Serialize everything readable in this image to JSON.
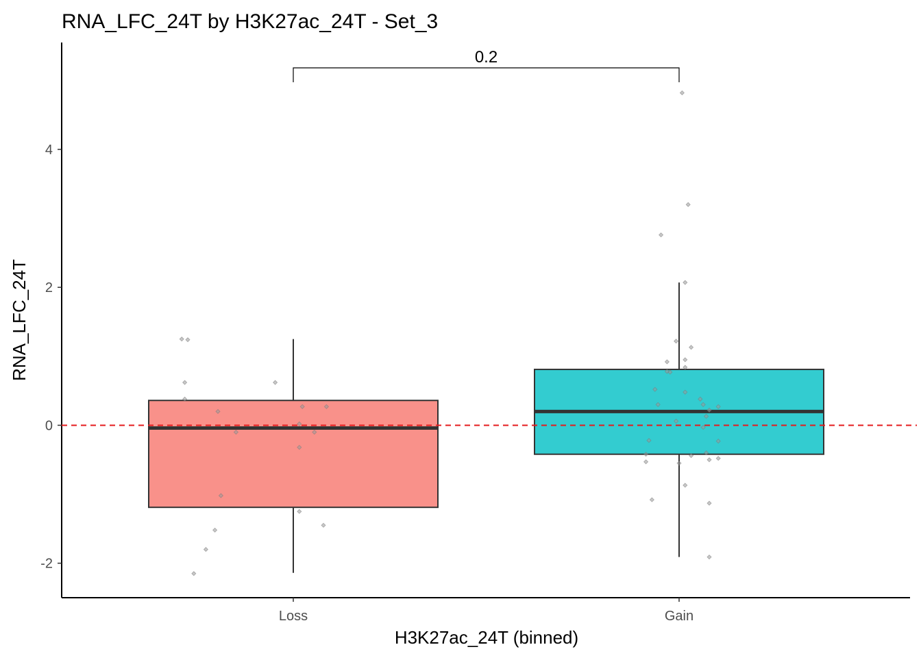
{
  "chart_data": {
    "type": "boxplot",
    "title": "RNA_LFC_24T by H3K27ac_24T - Set_3",
    "xlabel": "H3K27ac_24T (binned)",
    "ylabel": "RNA_LFC_24T",
    "categories": [
      "Loss",
      "Gain"
    ],
    "y_ticks": [
      -2,
      0,
      2,
      4
    ],
    "y_tick_labels": [
      "-2",
      "0",
      "2",
      "4"
    ],
    "ylim": [
      -2.5,
      5.55
    ],
    "grid": false,
    "reference_line": {
      "y": 0,
      "color": "#e41a1c",
      "style": "dashed"
    },
    "colors": {
      "Loss": "#f8766d",
      "Gain": "#00bfc4"
    },
    "box_opacity": 0.8,
    "boxes": [
      {
        "category": "Loss",
        "whisker_low": -2.14,
        "q1": -1.19,
        "median": -0.04,
        "q3": 0.36,
        "whisker_high": 1.25
      },
      {
        "category": "Gain",
        "whisker_low": -1.91,
        "q1": -0.42,
        "median": 0.2,
        "q3": 0.81,
        "whisker_high": 2.07
      }
    ],
    "points": [
      {
        "category": "Loss",
        "values": [
          1.25,
          1.24,
          0.62,
          0.38,
          0.2,
          -0.1,
          0.62,
          0.02,
          0.27,
          -0.32,
          -0.1,
          0.27,
          -1.02,
          -1.25,
          -1.52,
          -1.45,
          -1.8,
          -2.15
        ],
        "jitter": [
          -0.37,
          -0.35,
          -0.36,
          -0.36,
          -0.25,
          -0.19,
          -0.06,
          0.02,
          0.03,
          0.02,
          0.07,
          0.11,
          -0.24,
          0.02,
          -0.26,
          0.1,
          -0.29,
          -0.33
        ]
      },
      {
        "category": "Gain",
        "values": [
          4.82,
          3.2,
          2.76,
          2.07,
          1.22,
          1.13,
          0.95,
          0.92,
          0.84,
          0.78,
          0.77,
          0.52,
          0.48,
          0.38,
          0.3,
          0.3,
          0.27,
          0.22,
          0.13,
          0.06,
          -0.03,
          -0.22,
          -0.23,
          -0.4,
          -0.42,
          -0.44,
          -0.48,
          -0.5,
          -0.53,
          -0.55,
          -0.87,
          -1.08,
          -1.13,
          -1.91
        ],
        "jitter": [
          0.01,
          0.03,
          -0.06,
          0.02,
          -0.01,
          0.04,
          0.02,
          -0.04,
          0.02,
          -0.04,
          -0.03,
          -0.08,
          0.02,
          0.07,
          -0.07,
          0.08,
          0.13,
          0.1,
          0.09,
          -0.01,
          0.08,
          -0.1,
          0.13,
          0.09,
          -0.11,
          0.04,
          0.13,
          0.1,
          -0.11,
          0.0,
          0.02,
          -0.09,
          0.1,
          0.1
        ]
      }
    ],
    "comparison": {
      "groups": [
        "Loss",
        "Gain"
      ],
      "label": "0.2"
    }
  }
}
